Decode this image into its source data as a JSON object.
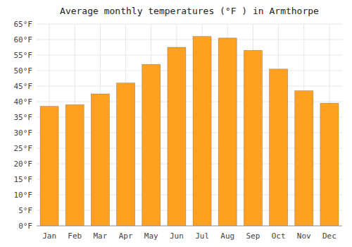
{
  "chart_data": {
    "type": "bar",
    "title": "Average monthly temperatures (°F ) in Armthorpe",
    "categories": [
      "Jan",
      "Feb",
      "Mar",
      "Apr",
      "May",
      "Jun",
      "Jul",
      "Aug",
      "Sep",
      "Oct",
      "Nov",
      "Dec"
    ],
    "values": [
      38.5,
      39.0,
      42.5,
      46.0,
      52.0,
      57.5,
      61.0,
      60.5,
      56.5,
      50.5,
      43.5,
      39.5
    ],
    "color": "#FFA020",
    "ylim": [
      0,
      65
    ],
    "yticks": [
      {
        "value": 0,
        "label": "0°F"
      },
      {
        "value": 5,
        "label": "5°F"
      },
      {
        "value": 10,
        "label": "10°F"
      },
      {
        "value": 15,
        "label": "15°F"
      },
      {
        "value": 20,
        "label": "20°F"
      },
      {
        "value": 25,
        "label": "25°F"
      },
      {
        "value": 30,
        "label": "30°F"
      },
      {
        "value": 35,
        "label": "35°F"
      },
      {
        "value": 40,
        "label": "40°F"
      },
      {
        "value": 45,
        "label": "45°F"
      },
      {
        "value": 50,
        "label": "50°F"
      },
      {
        "value": 55,
        "label": "55°F"
      },
      {
        "value": 60,
        "label": "60°F"
      },
      {
        "value": 65,
        "label": "65°F"
      }
    ],
    "grid": true
  }
}
